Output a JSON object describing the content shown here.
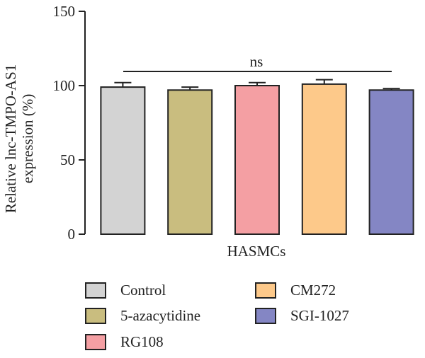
{
  "chart_data": {
    "type": "bar",
    "categories": [
      "Control",
      "5-azacytidine",
      "RG108",
      "CM272",
      "SGI-1027"
    ],
    "values": [
      99,
      97,
      100,
      101,
      97
    ],
    "errors": [
      3,
      2,
      2,
      3,
      1
    ],
    "colors": [
      "#d3d3d3",
      "#c9bd7f",
      "#f49fa3",
      "#fdc98a",
      "#8486c4"
    ],
    "ylabel_lines": [
      "Relative lnc-TMPO-AS1",
      "expression (%)"
    ],
    "xlabel": "HASMCs",
    "ylim": [
      0,
      150
    ],
    "yticks": [
      0,
      50,
      100,
      150
    ],
    "annotation": "ns",
    "legend_position": "bottom",
    "legend": [
      "Control",
      "5-azacytidine",
      "RG108",
      "CM272",
      "SGI-1027"
    ]
  }
}
